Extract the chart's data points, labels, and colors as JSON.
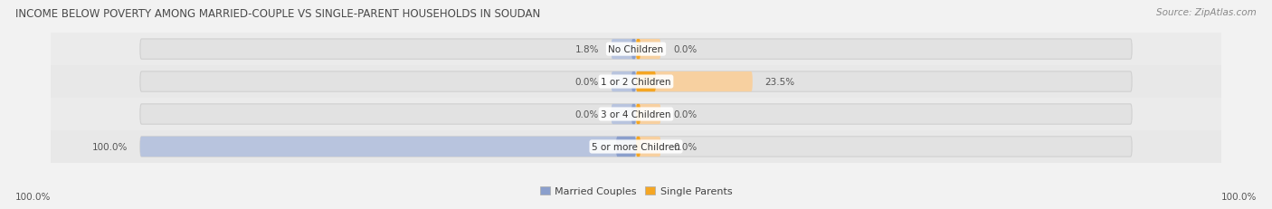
{
  "title": "INCOME BELOW POVERTY AMONG MARRIED-COUPLE VS SINGLE-PARENT HOUSEHOLDS IN SOUDAN",
  "source": "Source: ZipAtlas.com",
  "categories": [
    "No Children",
    "1 or 2 Children",
    "3 or 4 Children",
    "5 or more Children"
  ],
  "married_values": [
    1.8,
    0.0,
    0.0,
    100.0
  ],
  "single_values": [
    0.0,
    23.5,
    0.0,
    0.0
  ],
  "married_color": "#8b9fcc",
  "single_color": "#f5a623",
  "married_color_light": "#b8c4de",
  "single_color_light": "#f7d0a0",
  "bg_color": "#f2f2f2",
  "bar_bg_color": "#e2e2e2",
  "row_bg_color": "#ebebeb",
  "title_color": "#4a4a4a",
  "label_color": "#555555",
  "source_color": "#888888",
  "axis_label_left": "100.0%",
  "axis_label_right": "100.0%",
  "legend_married": "Married Couples",
  "legend_single": "Single Parents",
  "max_val": 100.0,
  "bar_height": 0.62,
  "min_bar_display": 5.0
}
